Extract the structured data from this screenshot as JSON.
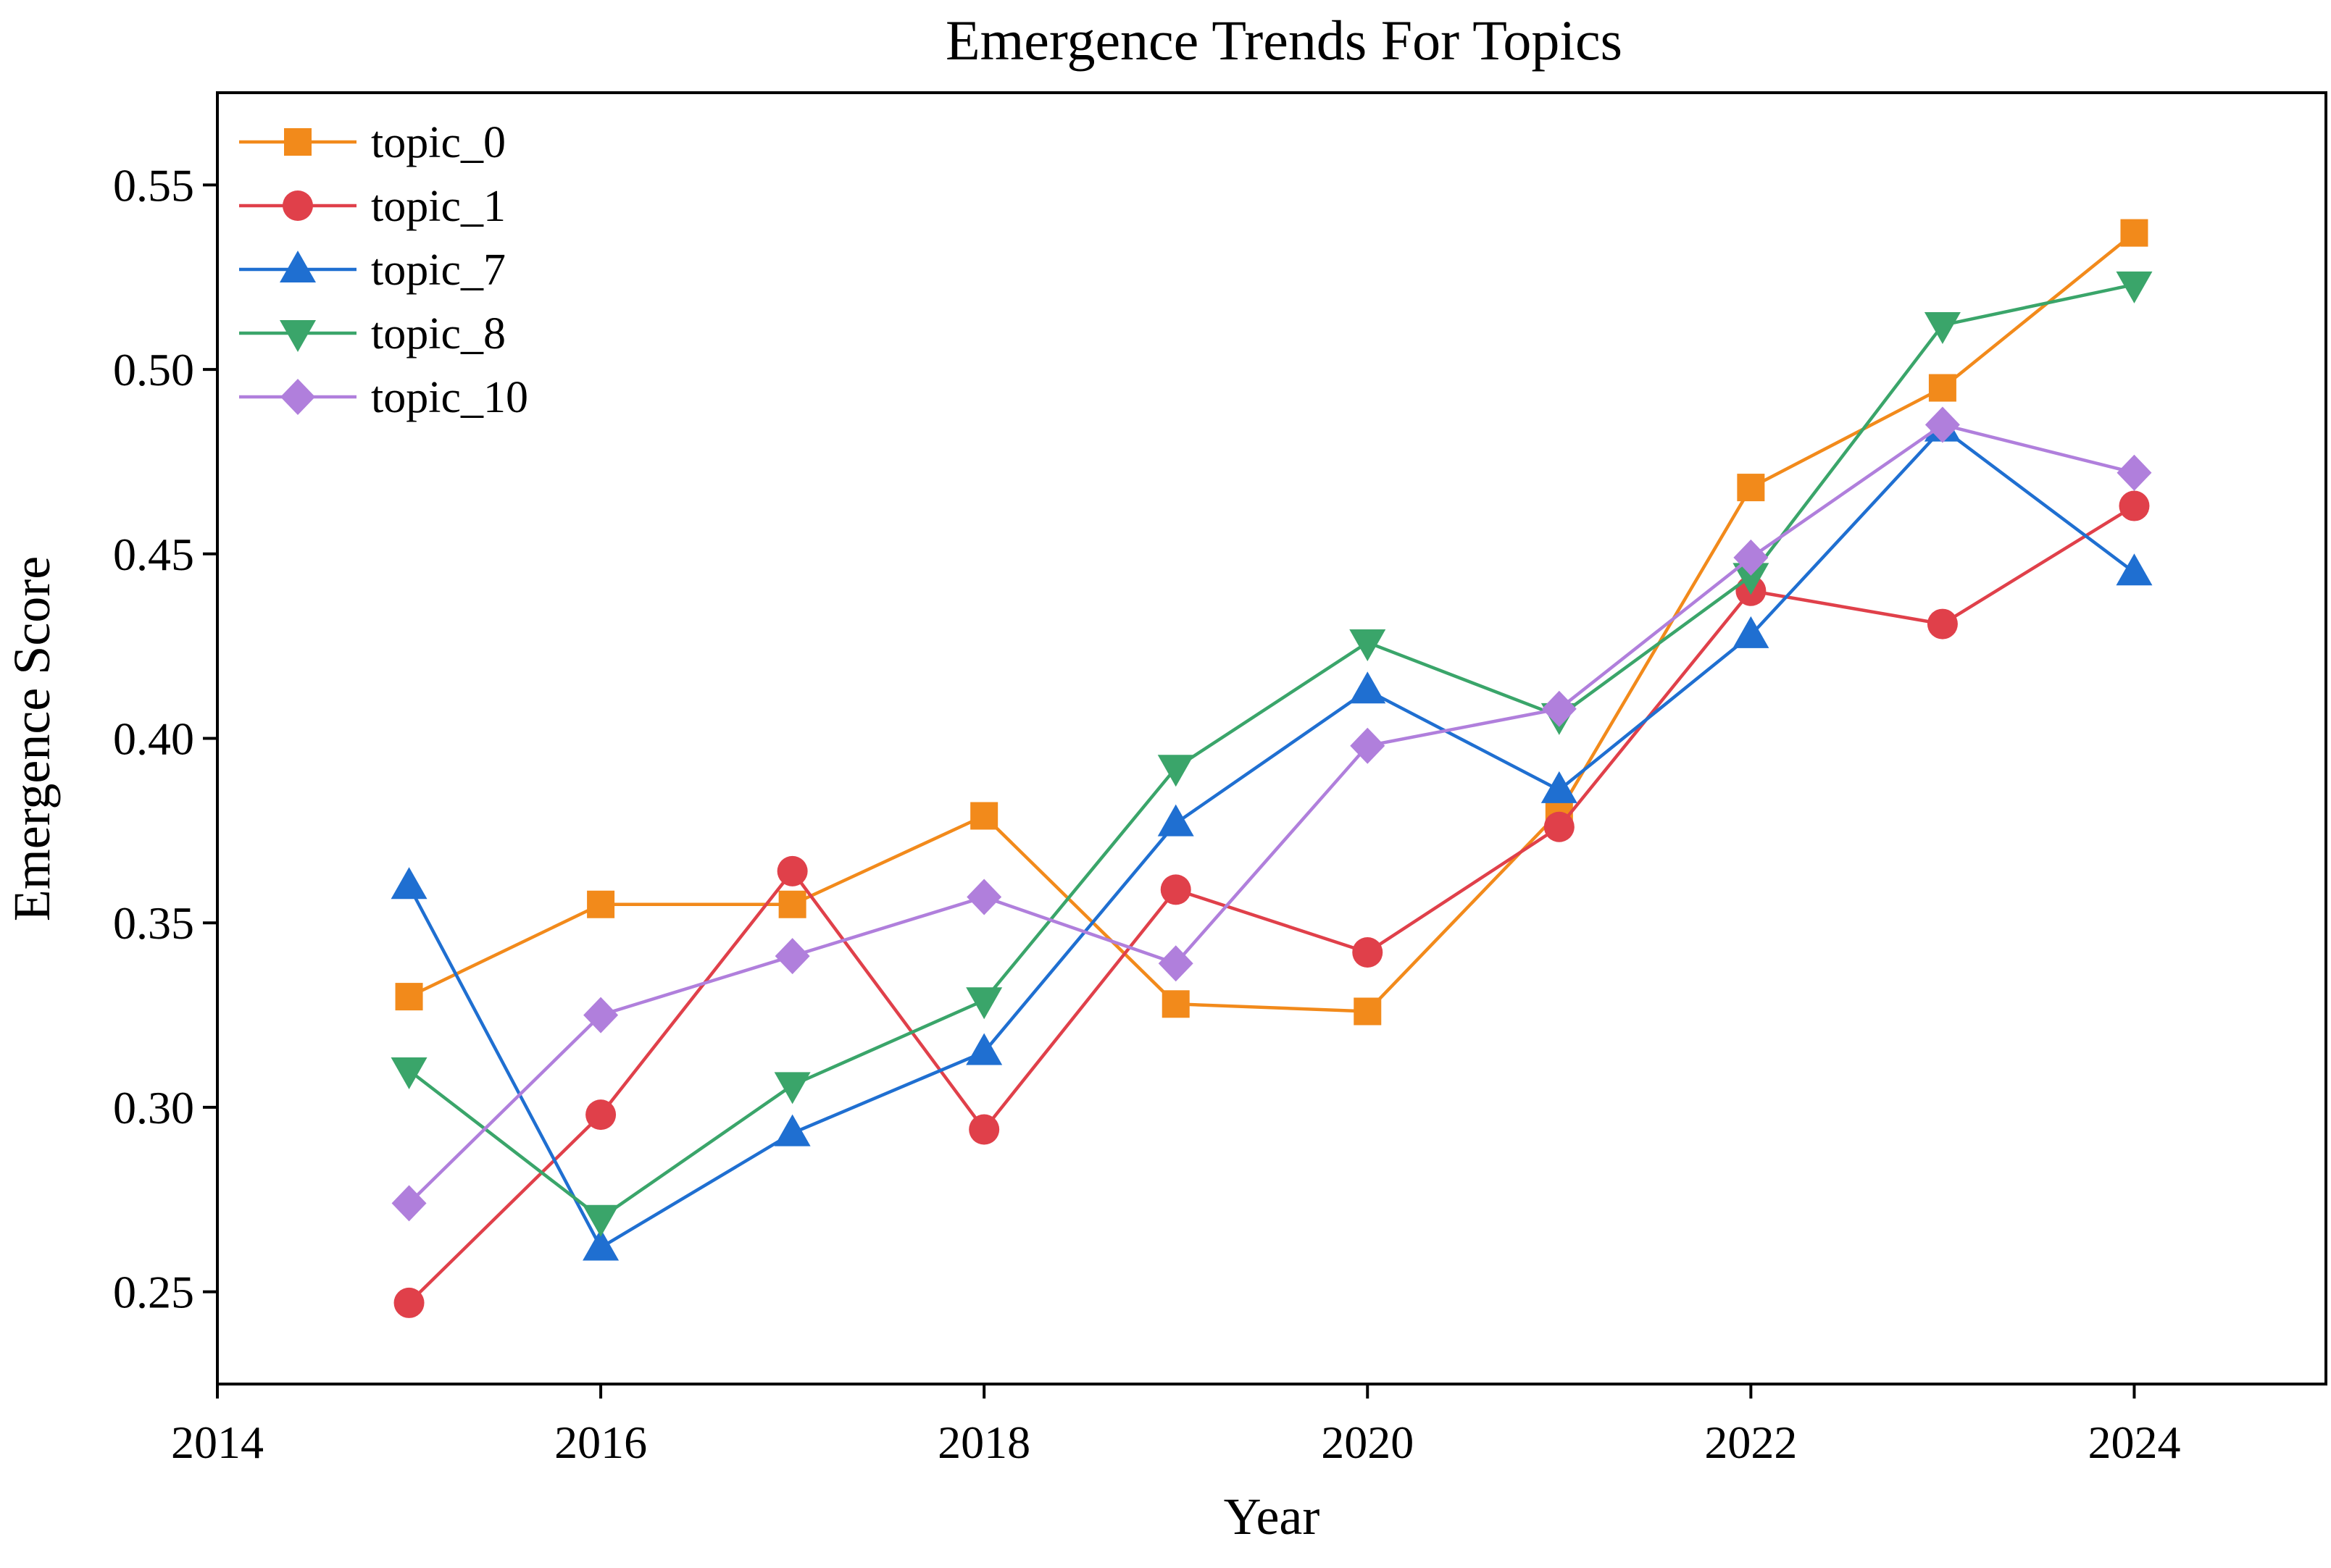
{
  "chart_data": {
    "type": "line",
    "title": "Emergence Trends For Topics",
    "xlabel": "Year",
    "ylabel": "Emergence Score",
    "xlim": [
      2014,
      2025
    ],
    "ylim": [
      0.225,
      0.575
    ],
    "xticks": [
      2014,
      2016,
      2018,
      2020,
      2022,
      2024
    ],
    "yticks": [
      0.25,
      0.3,
      0.35,
      0.4,
      0.45,
      0.5,
      0.55
    ],
    "ytick_labels": [
      "0.25",
      "0.30",
      "0.35",
      "0.40",
      "0.45",
      "0.50",
      "0.55"
    ],
    "grid": false,
    "legend_position": "top-left",
    "x": [
      2015,
      2016,
      2017,
      2018,
      2019,
      2020,
      2021,
      2022,
      2023,
      2024
    ],
    "series": [
      {
        "name": "topic_0",
        "color": "#f28a1b",
        "marker": "square",
        "values": [
          0.33,
          0.355,
          0.355,
          0.379,
          0.328,
          0.326,
          0.38,
          0.468,
          0.495,
          0.537
        ]
      },
      {
        "name": "topic_1",
        "color": "#e0404a",
        "marker": "circle",
        "values": [
          0.247,
          0.298,
          0.364,
          0.294,
          0.359,
          0.342,
          0.376,
          0.44,
          0.431,
          0.463
        ]
      },
      {
        "name": "topic_7",
        "color": "#1f6fd1",
        "marker": "triangle-up",
        "values": [
          0.36,
          0.262,
          0.293,
          0.315,
          0.377,
          0.413,
          0.386,
          0.428,
          0.484,
          0.445
        ]
      },
      {
        "name": "topic_8",
        "color": "#3aa56a",
        "marker": "triangle-down",
        "values": [
          0.31,
          0.27,
          0.306,
          0.329,
          0.392,
          0.426,
          0.406,
          0.444,
          0.512,
          0.523
        ]
      },
      {
        "name": "topic_10",
        "color": "#b07fdc",
        "marker": "diamond",
        "values": [
          0.274,
          0.325,
          0.341,
          0.357,
          0.339,
          0.398,
          0.408,
          0.449,
          0.485,
          0.472
        ]
      }
    ]
  }
}
